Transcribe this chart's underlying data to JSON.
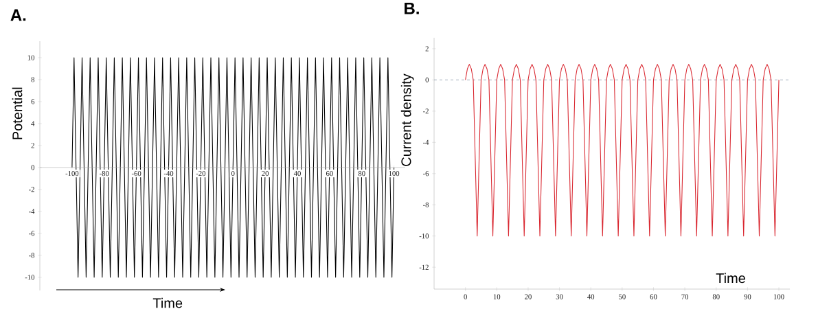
{
  "chart_data": [
    {
      "type": "line",
      "title": "A.",
      "xlabel": "Time",
      "ylabel": "Potential",
      "color": "#000000",
      "x": [
        -100,
        -98.75,
        -96.25,
        -93.75,
        -91.25,
        -88.75,
        -86.25,
        -83.75,
        -81.25,
        -78.75,
        -76.25,
        -73.75,
        -71.25,
        -68.75,
        -66.25,
        -63.75,
        -61.25,
        -58.75,
        -56.25,
        -53.75,
        -51.25,
        -48.75,
        -46.25,
        -43.75,
        -41.25,
        -38.75,
        -36.25,
        -33.75,
        -31.25,
        -28.75,
        -26.25,
        -23.75,
        -21.25,
        -18.75,
        -16.25,
        -13.75,
        -11.25,
        -8.75,
        -6.25,
        -3.75,
        -1.25,
        1.25,
        3.75,
        6.25,
        8.75,
        11.25,
        13.75,
        16.25,
        18.75,
        21.25,
        23.75,
        26.25,
        28.75,
        31.25,
        33.75,
        36.25,
        38.75,
        41.25,
        43.75,
        46.25,
        48.75,
        51.25,
        53.75,
        56.25,
        58.75,
        61.25,
        63.75,
        66.25,
        68.75,
        71.25,
        73.75,
        76.25,
        78.75,
        81.25,
        83.75,
        86.25,
        88.75,
        91.25,
        93.75,
        96.25,
        98.75,
        100
      ],
      "values": [
        0,
        10,
        -10,
        10,
        -10,
        10,
        -10,
        10,
        -10,
        10,
        -10,
        10,
        -10,
        10,
        -10,
        10,
        -10,
        10,
        -10,
        10,
        -10,
        10,
        -10,
        10,
        -10,
        10,
        -10,
        10,
        -10,
        10,
        -10,
        10,
        -10,
        10,
        -10,
        10,
        -10,
        10,
        -10,
        10,
        -10,
        10,
        -10,
        10,
        -10,
        10,
        -10,
        10,
        -10,
        10,
        -10,
        10,
        -10,
        10,
        -10,
        10,
        -10,
        10,
        -10,
        10,
        -10,
        10,
        -10,
        10,
        -10,
        10,
        -10,
        10,
        -10,
        10,
        -10,
        10,
        -10,
        10,
        -10,
        10,
        -10,
        10,
        -10,
        10,
        -10,
        0
      ],
      "xlim": [
        -120,
        107
      ],
      "ylim": [
        -11.2,
        11.5
      ],
      "xticks": [
        -100,
        -80,
        -60,
        -40,
        -20,
        0,
        20,
        40,
        60,
        80,
        100
      ],
      "yticks": [
        -10,
        -8,
        -6,
        -4,
        -2,
        0,
        2,
        4,
        6,
        8,
        10
      ]
    },
    {
      "type": "line",
      "title": "B.",
      "xlabel": "Time",
      "ylabel": "Current density",
      "color": "#d9262f",
      "x": [
        0,
        0.625,
        1.25,
        1.875,
        2.5,
        3.75,
        5,
        5.625,
        6.25,
        6.875,
        7.5,
        8.75,
        10,
        10.625,
        11.25,
        11.875,
        12.5,
        13.75,
        15,
        15.625,
        16.25,
        16.875,
        17.5,
        18.75,
        20,
        20.625,
        21.25,
        21.875,
        22.5,
        23.75,
        25,
        25.625,
        26.25,
        26.875,
        27.5,
        28.75,
        30,
        30.625,
        31.25,
        31.875,
        32.5,
        33.75,
        35,
        35.625,
        36.25,
        36.875,
        37.5,
        38.75,
        40,
        40.625,
        41.25,
        41.875,
        42.5,
        43.75,
        45,
        45.625,
        46.25,
        46.875,
        47.5,
        48.75,
        50,
        50.625,
        51.25,
        51.875,
        52.5,
        53.75,
        55,
        55.625,
        56.25,
        56.875,
        57.5,
        58.75,
        60,
        60.625,
        61.25,
        61.875,
        62.5,
        63.75,
        65,
        65.625,
        66.25,
        66.875,
        67.5,
        68.75,
        70,
        70.625,
        71.25,
        71.875,
        72.5,
        73.75,
        75,
        75.625,
        76.25,
        76.875,
        77.5,
        78.75,
        80,
        80.625,
        81.25,
        81.875,
        82.5,
        83.75,
        85,
        85.625,
        86.25,
        86.875,
        87.5,
        88.75,
        90,
        90.625,
        91.25,
        91.875,
        92.5,
        93.75,
        95,
        95.625,
        96.25,
        96.875,
        97.5,
        98.75,
        100
      ],
      "values": [
        0,
        0.71,
        1,
        0.71,
        0,
        -10,
        0,
        0.71,
        1,
        0.71,
        0,
        -10,
        0,
        0.71,
        1,
        0.71,
        0,
        -10,
        0,
        0.71,
        1,
        0.71,
        0,
        -10,
        0,
        0.71,
        1,
        0.71,
        0,
        -10,
        0,
        0.71,
        1,
        0.71,
        0,
        -10,
        0,
        0.71,
        1,
        0.71,
        0,
        -10,
        0,
        0.71,
        1,
        0.71,
        0,
        -10,
        0,
        0.71,
        1,
        0.71,
        0,
        -10,
        0,
        0.71,
        1,
        0.71,
        0,
        -10,
        0,
        0.71,
        1,
        0.71,
        0,
        -10,
        0,
        0.71,
        1,
        0.71,
        0,
        -10,
        0,
        0.71,
        1,
        0.71,
        0,
        -10,
        0,
        0.71,
        1,
        0.71,
        0,
        -10,
        0,
        0.71,
        1,
        0.71,
        0,
        -10,
        0,
        0.71,
        1,
        0.71,
        0,
        -10,
        0,
        0.71,
        1,
        0.71,
        0,
        -10,
        0,
        0.71,
        1,
        0.71,
        0,
        -10,
        0,
        0.71,
        1,
        0.71,
        0,
        -10,
        0,
        0.71,
        1,
        0.71,
        0,
        -10,
        0
      ],
      "xlim": [
        -10,
        103.5
      ],
      "ylim": [
        -13.4,
        2.7
      ],
      "xticks": [
        0,
        10,
        20,
        30,
        40,
        50,
        60,
        70,
        80,
        90,
        100
      ],
      "yticks": [
        -12,
        -10,
        -8,
        -6,
        -4,
        -2,
        0,
        2
      ],
      "ref_lines": [
        {
          "axis": "y",
          "value": 0,
          "color": "#8c9bab",
          "line_style": "dashed"
        }
      ]
    }
  ]
}
